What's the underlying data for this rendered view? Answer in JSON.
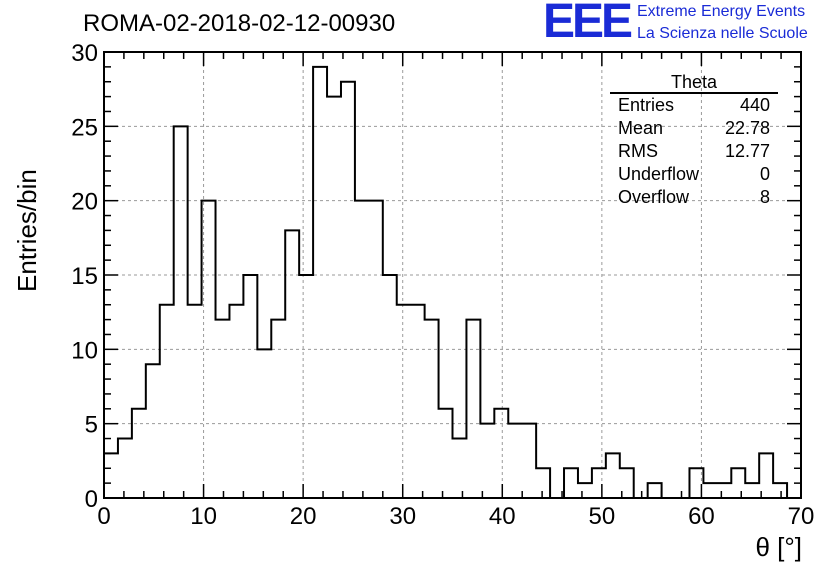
{
  "title": "ROMA-02-2018-02-12-00930",
  "logo": {
    "mark": "EEE",
    "line1": "Extreme Energy Events",
    "line2": "La Scienza nelle Scuole"
  },
  "colors": {
    "logo": "#1a2bd6",
    "histogram": "#000000",
    "grid": "#9a9a9a"
  },
  "stats": {
    "title": "Theta",
    "rows": [
      {
        "label": "Entries",
        "value": "440"
      },
      {
        "label": "Mean",
        "value": "22.78"
      },
      {
        "label": "RMS",
        "value": "12.77"
      },
      {
        "label": "Underflow",
        "value": "0"
      },
      {
        "label": "Overflow",
        "value": "8"
      }
    ]
  },
  "chart_data": {
    "type": "histogram",
    "xlabel": "θ [°]",
    "ylabel": "Entries/bin",
    "xlim": [
      0,
      70
    ],
    "ylim": [
      0,
      30
    ],
    "xticks": [
      "0",
      "10",
      "20",
      "30",
      "40",
      "50",
      "60",
      "70"
    ],
    "yticks": [
      "0",
      "5",
      "10",
      "15",
      "20",
      "25",
      "30"
    ],
    "grid": true,
    "bin_width": 1.4,
    "bin_start": 0,
    "values": [
      3,
      4,
      6,
      9,
      13,
      25,
      13,
      20,
      12,
      13,
      15,
      10,
      12,
      18,
      15,
      29,
      27,
      28,
      20,
      20,
      15,
      13,
      13,
      12,
      6,
      4,
      12,
      5,
      6,
      5,
      5,
      2,
      0,
      2,
      1,
      2,
      3,
      2,
      0,
      1,
      0,
      0,
      2,
      1,
      1,
      2,
      1,
      3,
      1,
      0
    ]
  }
}
